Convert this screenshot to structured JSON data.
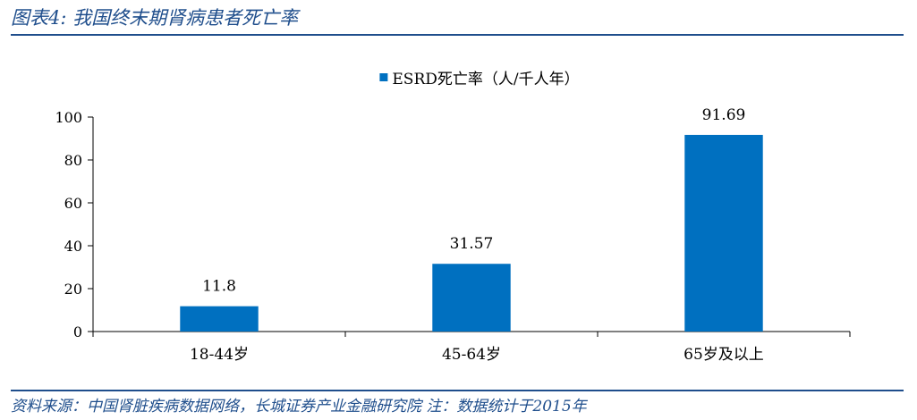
{
  "header": {
    "title": "图表4:  我国终末期肾病患者死亡率"
  },
  "footer": {
    "source": "资料来源：中国肾脏疾病数据网络，长城证券产业金融研究院 注：数据统计于2015年"
  },
  "chart_data": {
    "type": "bar",
    "categories": [
      "18-44岁",
      "45-64岁",
      "65岁及以上"
    ],
    "series": [
      {
        "name": "ESRD死亡率（人/千人年）",
        "values": [
          11.8,
          31.57,
          91.69
        ],
        "color": "#0070c0"
      }
    ],
    "data_labels": [
      "11.8",
      "31.57",
      "91.69"
    ],
    "ylim": [
      0,
      100
    ],
    "yticks": [
      0,
      20,
      40,
      60,
      80,
      100
    ],
    "legend": "top-center",
    "grid": false
  }
}
